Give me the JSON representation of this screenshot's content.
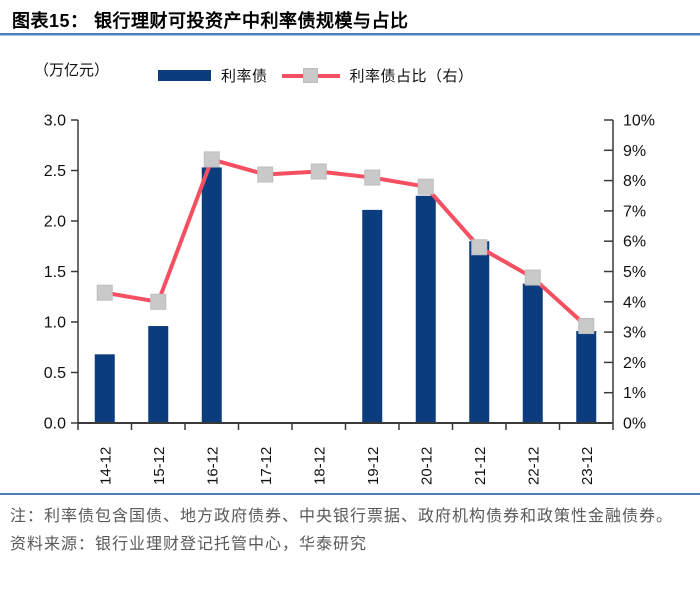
{
  "header": {
    "title": "图表15：  银行理财可投资产中利率债规模与占比"
  },
  "chart": {
    "unit_label": "（万亿元）",
    "legend": [
      {
        "label": "利率债",
        "type": "bar"
      },
      {
        "label": "利率债占比（右）",
        "type": "line"
      }
    ]
  },
  "chart_data": {
    "type": "bar",
    "title": "银行理财可投资产中利率债规模与占比",
    "categories": [
      "14-12",
      "15-12",
      "16-12",
      "17-12",
      "18-12",
      "19-12",
      "20-12",
      "21-12",
      "22-12",
      "23-12"
    ],
    "series": [
      {
        "name": "利率债",
        "type": "bar",
        "axis": "left",
        "values": [
          0.68,
          0.96,
          2.53,
          null,
          null,
          2.11,
          2.25,
          1.8,
          1.38,
          0.91
        ]
      },
      {
        "name": "利率债占比（右）",
        "type": "line",
        "axis": "right",
        "values": [
          4.3,
          4.0,
          8.7,
          8.2,
          8.3,
          8.1,
          7.8,
          5.8,
          4.8,
          3.2
        ]
      }
    ],
    "left_axis": {
      "label": "（万亿元）",
      "min": 0,
      "max": 3.0,
      "step": 0.5,
      "ticks": [
        "3.0",
        "2.5",
        "2.0",
        "1.5",
        "1.0",
        "0.5",
        "0.0"
      ]
    },
    "right_axis": {
      "min": 0,
      "max": 10,
      "step": 1,
      "ticks": [
        "10%",
        "9%",
        "8%",
        "7%",
        "6%",
        "5%",
        "4%",
        "3%",
        "2%",
        "1%",
        "0%"
      ]
    },
    "grid": false,
    "legend_position": "top",
    "colors": {
      "bar": "#0b3c7d",
      "line": "#f45062",
      "marker": "#c9c9c9",
      "axis": "#3a3a3a",
      "tick_text": "#111111"
    }
  },
  "footer": {
    "note": "注：利率债包含国债、地方政府债券、中央银行票据、政府机构债券和政策性金融债券。",
    "source": "资料来源：银行业理财登记托管中心，华泰研究"
  }
}
